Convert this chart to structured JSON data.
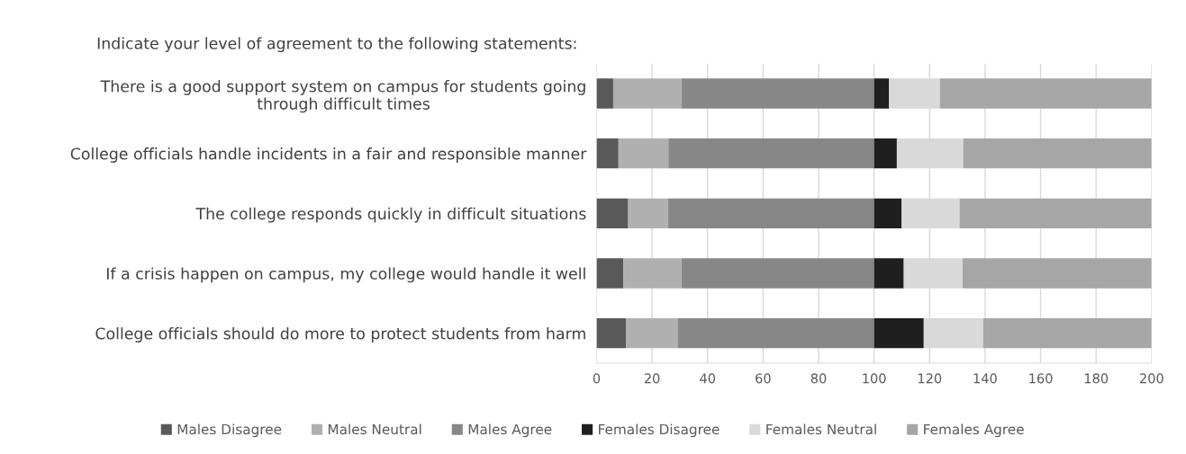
{
  "chart_data": {
    "type": "bar",
    "orientation": "horizontal",
    "stacked": true,
    "title": "Indicate your level of agreement to the following statements:",
    "categories": [
      "There is a good support system on campus for students going\nthrough difficult times",
      "College officials handle incidents in a fair and responsible manner",
      "The college responds quickly in difficult situations",
      "If a crisis happen on campus, my college would handle it well",
      "College officials should do more to protect students from harm"
    ],
    "series": [
      {
        "name": "Males Disagree",
        "color": "#595959",
        "values": [
          6.0,
          7.9,
          11.4,
          9.7,
          10.7
        ]
      },
      {
        "name": "Males Neutral",
        "color": "#b0b0b0",
        "values": [
          24.7,
          18.0,
          14.3,
          20.9,
          18.5
        ]
      },
      {
        "name": "Males Agree",
        "color": "#878787",
        "values": [
          69.3,
          74.1,
          74.3,
          69.4,
          70.8
        ]
      },
      {
        "name": "Females Disagree",
        "color": "#1f1f1f",
        "values": [
          5.4,
          8.2,
          9.9,
          10.7,
          17.9
        ]
      },
      {
        "name": "Females Neutral",
        "color": "#d9d9d9",
        "values": [
          18.3,
          23.9,
          20.9,
          21.2,
          21.4
        ]
      },
      {
        "name": "Females Agree",
        "color": "#a6a6a6",
        "values": [
          76.3,
          67.9,
          69.2,
          68.1,
          60.7
        ]
      }
    ],
    "xlim": [
      0,
      200
    ],
    "xticks": [
      0,
      20,
      40,
      60,
      80,
      100,
      120,
      140,
      160,
      180,
      200
    ],
    "grid": "x",
    "legend": "bottom"
  }
}
